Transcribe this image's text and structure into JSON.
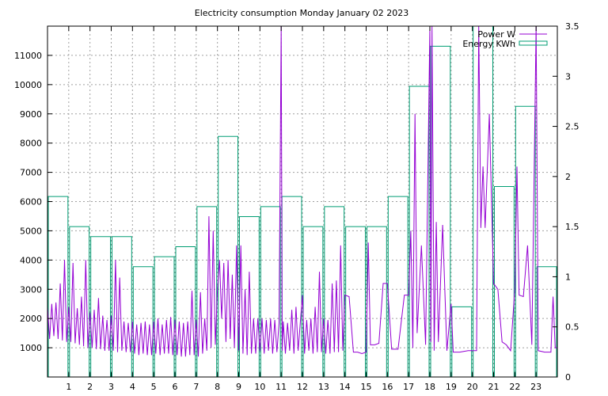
{
  "chart_data": {
    "type": "line",
    "title": "Electricity consumption Monday January 02 2023",
    "xlabel": "",
    "ylabel": "",
    "y2label": "",
    "grid": true,
    "legend_position": "top-right",
    "x_ticks": [
      1,
      2,
      3,
      4,
      5,
      6,
      7,
      8,
      9,
      10,
      11,
      12,
      13,
      14,
      15,
      16,
      17,
      18,
      19,
      20,
      21,
      22,
      23
    ],
    "xlim": [
      0,
      24
    ],
    "y_ticks": [
      1000,
      2000,
      3000,
      4000,
      5000,
      6000,
      7000,
      8000,
      9000,
      10000,
      11000
    ],
    "ylim": [
      0,
      12000
    ],
    "y2_ticks": [
      "0",
      "0.5",
      "1",
      "1.5",
      "2",
      "2.5",
      "3",
      "3.5"
    ],
    "y2lim": [
      0,
      3.5
    ],
    "series": [
      {
        "name": "Power W",
        "axis": "y",
        "style": "line",
        "color": "#9400d3",
        "points": [
          [
            0.0,
            2400
          ],
          [
            0.1,
            1300
          ],
          [
            0.2,
            2500
          ],
          [
            0.3,
            1400
          ],
          [
            0.4,
            2550
          ],
          [
            0.5,
            1300
          ],
          [
            0.6,
            3200
          ],
          [
            0.7,
            1250
          ],
          [
            0.8,
            4000
          ],
          [
            0.9,
            1200
          ],
          [
            1.0,
            2400
          ],
          [
            1.1,
            1200
          ],
          [
            1.2,
            3900
          ],
          [
            1.3,
            1150
          ],
          [
            1.4,
            2350
          ],
          [
            1.5,
            1100
          ],
          [
            1.6,
            2750
          ],
          [
            1.7,
            1050
          ],
          [
            1.8,
            4000
          ],
          [
            1.9,
            1000
          ],
          [
            2.0,
            2200
          ],
          [
            2.1,
            1000
          ],
          [
            2.2,
            2300
          ],
          [
            2.3,
            950
          ],
          [
            2.4,
            2700
          ],
          [
            2.5,
            950
          ],
          [
            2.6,
            2100
          ],
          [
            2.7,
            900
          ],
          [
            2.8,
            1950
          ],
          [
            2.9,
            900
          ],
          [
            3.0,
            2100
          ],
          [
            3.1,
            900
          ],
          [
            3.2,
            4000
          ],
          [
            3.3,
            850
          ],
          [
            3.4,
            3400
          ],
          [
            3.5,
            900
          ],
          [
            3.6,
            1900
          ],
          [
            3.7,
            850
          ],
          [
            3.8,
            1850
          ],
          [
            3.9,
            850
          ],
          [
            4.0,
            1900
          ],
          [
            4.1,
            800
          ],
          [
            4.2,
            1800
          ],
          [
            4.3,
            750
          ],
          [
            4.4,
            1850
          ],
          [
            4.5,
            800
          ],
          [
            4.6,
            1900
          ],
          [
            4.7,
            750
          ],
          [
            4.8,
            1800
          ],
          [
            4.9,
            750
          ],
          [
            5.0,
            1900
          ],
          [
            5.1,
            800
          ],
          [
            5.2,
            2000
          ],
          [
            5.3,
            750
          ],
          [
            5.4,
            1800
          ],
          [
            5.5,
            800
          ],
          [
            5.6,
            1950
          ],
          [
            5.7,
            800
          ],
          [
            5.8,
            2050
          ],
          [
            5.9,
            750
          ],
          [
            6.0,
            1950
          ],
          [
            6.1,
            750
          ],
          [
            6.2,
            1900
          ],
          [
            6.3,
            700
          ],
          [
            6.4,
            1850
          ],
          [
            6.5,
            700
          ],
          [
            6.6,
            1900
          ],
          [
            6.7,
            750
          ],
          [
            6.8,
            2950
          ],
          [
            6.9,
            750
          ],
          [
            7.0,
            1950
          ],
          [
            7.1,
            700
          ],
          [
            7.2,
            2900
          ],
          [
            7.3,
            800
          ],
          [
            7.4,
            2000
          ],
          [
            7.5,
            900
          ],
          [
            7.6,
            5500
          ],
          [
            7.7,
            1000
          ],
          [
            7.8,
            5000
          ],
          [
            7.9,
            1100
          ],
          [
            8.0,
            3000
          ],
          [
            8.1,
            4000
          ],
          [
            8.2,
            2000
          ],
          [
            8.3,
            3900
          ],
          [
            8.4,
            1200
          ],
          [
            8.5,
            4000
          ],
          [
            8.6,
            1300
          ],
          [
            8.7,
            3500
          ],
          [
            8.8,
            1000
          ],
          [
            8.9,
            4500
          ],
          [
            9.0,
            900
          ],
          [
            9.1,
            4500
          ],
          [
            9.2,
            800
          ],
          [
            9.3,
            3000
          ],
          [
            9.4,
            750
          ],
          [
            9.5,
            3600
          ],
          [
            9.6,
            800
          ],
          [
            9.7,
            2000
          ],
          [
            9.8,
            800
          ],
          [
            9.9,
            2000
          ],
          [
            10.0,
            900
          ],
          [
            10.1,
            2000
          ],
          [
            10.2,
            800
          ],
          [
            10.3,
            1950
          ],
          [
            10.4,
            900
          ],
          [
            10.5,
            2000
          ],
          [
            10.6,
            800
          ],
          [
            10.7,
            1950
          ],
          [
            10.8,
            850
          ],
          [
            10.9,
            1850
          ],
          [
            11.0,
            12000
          ],
          [
            11.05,
            900
          ],
          [
            11.1,
            1900
          ],
          [
            11.2,
            800
          ],
          [
            11.3,
            1850
          ],
          [
            11.4,
            900
          ],
          [
            11.5,
            2300
          ],
          [
            11.6,
            800
          ],
          [
            11.7,
            2400
          ],
          [
            11.8,
            900
          ],
          [
            12.0,
            2800
          ],
          [
            12.1,
            800
          ],
          [
            12.2,
            1950
          ],
          [
            12.3,
            900
          ],
          [
            12.4,
            2000
          ],
          [
            12.5,
            800
          ],
          [
            12.6,
            2400
          ],
          [
            12.7,
            850
          ],
          [
            12.8,
            3600
          ],
          [
            12.9,
            850
          ],
          [
            13.0,
            2000
          ],
          [
            13.1,
            800
          ],
          [
            13.2,
            1950
          ],
          [
            13.3,
            800
          ],
          [
            13.4,
            3200
          ],
          [
            13.5,
            850
          ],
          [
            13.6,
            3300
          ],
          [
            13.7,
            850
          ],
          [
            13.8,
            4500
          ],
          [
            13.9,
            900
          ],
          [
            14.0,
            2800
          ],
          [
            14.2,
            2750
          ],
          [
            14.4,
            850
          ],
          [
            14.6,
            850
          ],
          [
            14.8,
            800
          ],
          [
            15.0,
            850
          ],
          [
            15.1,
            4600
          ],
          [
            15.2,
            1100
          ],
          [
            15.4,
            1100
          ],
          [
            15.6,
            1150
          ],
          [
            15.8,
            3200
          ],
          [
            16.0,
            3200
          ],
          [
            16.2,
            950
          ],
          [
            16.5,
            950
          ],
          [
            16.8,
            2800
          ],
          [
            17.0,
            2800
          ],
          [
            17.1,
            5000
          ],
          [
            17.2,
            1000
          ],
          [
            17.3,
            9000
          ],
          [
            17.4,
            1500
          ],
          [
            17.6,
            4500
          ],
          [
            17.8,
            1100
          ],
          [
            18.0,
            12000
          ],
          [
            18.05,
            1200
          ],
          [
            18.1,
            12000
          ],
          [
            18.2,
            900
          ],
          [
            18.3,
            5300
          ],
          [
            18.4,
            1200
          ],
          [
            18.6,
            5200
          ],
          [
            18.8,
            900
          ],
          [
            19.0,
            2500
          ],
          [
            19.1,
            850
          ],
          [
            19.4,
            850
          ],
          [
            19.8,
            900
          ],
          [
            20.2,
            900
          ],
          [
            20.3,
            12000
          ],
          [
            20.4,
            5100
          ],
          [
            20.5,
            7200
          ],
          [
            20.6,
            5100
          ],
          [
            20.8,
            9000
          ],
          [
            21.0,
            3200
          ],
          [
            21.2,
            3000
          ],
          [
            21.4,
            1200
          ],
          [
            21.6,
            1100
          ],
          [
            21.8,
            900
          ],
          [
            22.0,
            3000
          ],
          [
            22.1,
            7200
          ],
          [
            22.2,
            2800
          ],
          [
            22.4,
            2750
          ],
          [
            22.6,
            4500
          ],
          [
            22.8,
            1100
          ],
          [
            23.0,
            12000
          ],
          [
            23.1,
            900
          ],
          [
            23.4,
            850
          ],
          [
            23.7,
            850
          ],
          [
            23.8,
            2750
          ],
          [
            23.9,
            1000
          ],
          [
            24.0,
            1000
          ]
        ]
      },
      {
        "name": "Energy KWh",
        "axis": "y2",
        "style": "steps",
        "color": "#009e73",
        "values": [
          1.8,
          1.5,
          1.4,
          1.4,
          1.1,
          1.2,
          1.3,
          1.7,
          2.4,
          1.6,
          1.7,
          1.8,
          1.5,
          1.7,
          1.5,
          1.5,
          1.8,
          2.9,
          3.3,
          0.7,
          3.5,
          1.9,
          2.7,
          1.1
        ]
      }
    ]
  }
}
